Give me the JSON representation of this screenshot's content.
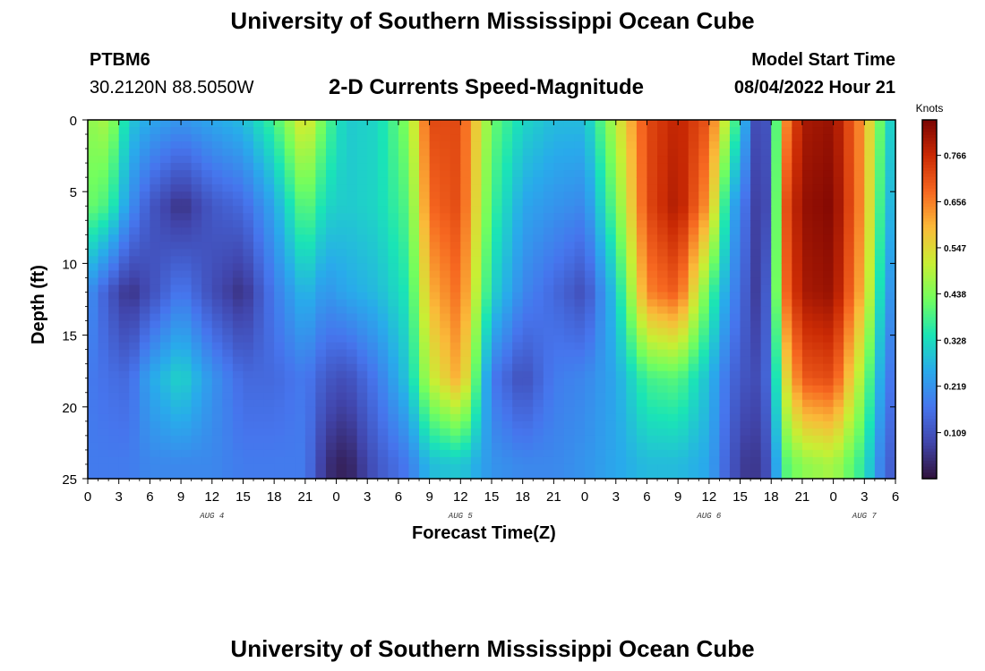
{
  "header": {
    "title": "University of Southern Mississippi Ocean Cube",
    "station": "PTBM6",
    "coords": "30.2120N  88.5050W",
    "plot_title": "2-D Currents Speed-Magnitude",
    "model_start_label": "Model Start Time",
    "model_start_value": "08/04/2022 Hour 21"
  },
  "footer": {
    "title": "University of Southern Mississippi Ocean Cube"
  },
  "colorbar": {
    "unit": "Knots",
    "ticks": [
      "0.766",
      "0.656",
      "0.547",
      "0.438",
      "0.328",
      "0.219",
      "0.109"
    ],
    "tick_values": [
      0.766,
      0.656,
      0.547,
      0.438,
      0.328,
      0.219,
      0.109
    ],
    "min": 0.0,
    "max": 0.85
  },
  "chart_data": {
    "type": "heatmap",
    "title": "2-D Currents Speed-Magnitude",
    "xlabel": "Forecast Time(Z)",
    "ylabel": "Depth (ft)",
    "x_tick_labels": [
      "0",
      "3",
      "6",
      "9",
      "12",
      "15",
      "18",
      "21",
      "0",
      "3",
      "6",
      "9",
      "12",
      "15",
      "18",
      "21",
      "0",
      "3",
      "6",
      "9",
      "12",
      "15",
      "18",
      "21",
      "0",
      "3",
      "6"
    ],
    "date_labels": [
      {
        "text": "AUG 4",
        "hour_index": 4
      },
      {
        "text": "AUG 5",
        "hour_index": 12
      },
      {
        "text": "AUG 6",
        "hour_index": 20
      },
      {
        "text": "AUG 7",
        "hour_index": 25
      }
    ],
    "y_ticks": [
      0,
      5,
      10,
      15,
      20,
      25
    ],
    "ylim": [
      0,
      25
    ],
    "xlim_hours": [
      0,
      78
    ],
    "value_unit": "Knots",
    "profile_depths": [
      0,
      6,
      12,
      18,
      24
    ],
    "time_profiles": [
      {
        "t": 0,
        "v": [
          0.45,
          0.42,
          0.22,
          0.18,
          0.18
        ]
      },
      {
        "t": 2,
        "v": [
          0.48,
          0.38,
          0.12,
          0.16,
          0.18
        ]
      },
      {
        "t": 4,
        "v": [
          0.3,
          0.22,
          0.05,
          0.15,
          0.18
        ]
      },
      {
        "t": 6,
        "v": [
          0.25,
          0.12,
          0.1,
          0.25,
          0.2
        ]
      },
      {
        "t": 9,
        "v": [
          0.22,
          0.05,
          0.18,
          0.32,
          0.2
        ]
      },
      {
        "t": 12,
        "v": [
          0.25,
          0.12,
          0.1,
          0.22,
          0.2
        ]
      },
      {
        "t": 15,
        "v": [
          0.28,
          0.15,
          0.05,
          0.15,
          0.18
        ]
      },
      {
        "t": 18,
        "v": [
          0.38,
          0.25,
          0.18,
          0.15,
          0.18
        ]
      },
      {
        "t": 21,
        "v": [
          0.55,
          0.42,
          0.28,
          0.18,
          0.18
        ]
      },
      {
        "t": 23,
        "v": [
          0.4,
          0.32,
          0.22,
          0.12,
          0.05
        ]
      },
      {
        "t": 25,
        "v": [
          0.3,
          0.3,
          0.25,
          0.1,
          0.02
        ]
      },
      {
        "t": 28,
        "v": [
          0.32,
          0.32,
          0.28,
          0.18,
          0.12
        ]
      },
      {
        "t": 31,
        "v": [
          0.45,
          0.4,
          0.35,
          0.3,
          0.18
        ]
      },
      {
        "t": 33,
        "v": [
          0.72,
          0.68,
          0.6,
          0.5,
          0.28
        ]
      },
      {
        "t": 36,
        "v": [
          0.72,
          0.72,
          0.68,
          0.62,
          0.3
        ]
      },
      {
        "t": 39,
        "v": [
          0.42,
          0.38,
          0.32,
          0.18,
          0.22
        ]
      },
      {
        "t": 42,
        "v": [
          0.32,
          0.25,
          0.2,
          0.1,
          0.2
        ]
      },
      {
        "t": 45,
        "v": [
          0.28,
          0.22,
          0.15,
          0.18,
          0.2
        ]
      },
      {
        "t": 48,
        "v": [
          0.28,
          0.2,
          0.1,
          0.2,
          0.22
        ]
      },
      {
        "t": 51,
        "v": [
          0.5,
          0.42,
          0.3,
          0.25,
          0.25
        ]
      },
      {
        "t": 54,
        "v": [
          0.72,
          0.72,
          0.65,
          0.38,
          0.28
        ]
      },
      {
        "t": 57,
        "v": [
          0.78,
          0.8,
          0.7,
          0.4,
          0.28
        ]
      },
      {
        "t": 60,
        "v": [
          0.7,
          0.62,
          0.4,
          0.28,
          0.25
        ]
      },
      {
        "t": 62,
        "v": [
          0.45,
          0.28,
          0.22,
          0.15,
          0.12
        ]
      },
      {
        "t": 64,
        "v": [
          0.18,
          0.12,
          0.1,
          0.1,
          0.05
        ]
      },
      {
        "t": 65,
        "v": [
          0.02,
          0.04,
          0.05,
          0.1,
          0.08
        ]
      },
      {
        "t": 66,
        "v": [
          0.2,
          0.15,
          0.2,
          0.18,
          0.12
        ]
      },
      {
        "t": 67,
        "v": [
          0.6,
          0.68,
          0.65,
          0.5,
          0.38
        ]
      },
      {
        "t": 69,
        "v": [
          0.8,
          0.82,
          0.8,
          0.7,
          0.45
        ]
      },
      {
        "t": 72,
        "v": [
          0.82,
          0.84,
          0.82,
          0.72,
          0.48
        ]
      },
      {
        "t": 75,
        "v": [
          0.62,
          0.62,
          0.58,
          0.45,
          0.35
        ]
      },
      {
        "t": 77,
        "v": [
          0.35,
          0.3,
          0.25,
          0.2,
          0.15
        ]
      },
      {
        "t": 78,
        "v": [
          0.28,
          0.25,
          0.2,
          0.15,
          0.12
        ]
      }
    ]
  }
}
